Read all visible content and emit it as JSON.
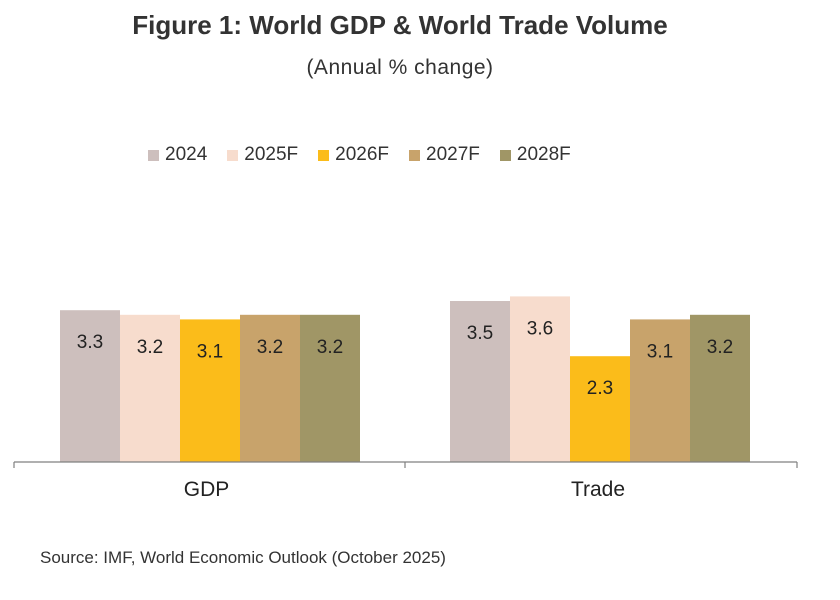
{
  "title": "Figure 1:  World GDP & World Trade Volume",
  "subtitle": "(Annual % change)",
  "source": "Source: IMF, World Economic Outlook (October 2025)",
  "colors": {
    "2024": "#cdbfbd",
    "2025F": "#f7dccd",
    "2026F": "#fbbc1a",
    "2027F": "#c8a36b",
    "2028F": "#a09666",
    "axis": "#808080",
    "label": "#222222"
  },
  "chart_data": {
    "type": "bar",
    "title": "Figure 1:  World GDP & World Trade Volume",
    "subtitle": "(Annual % change)",
    "categories": [
      "GDP",
      "Trade"
    ],
    "series": [
      {
        "name": "2024",
        "values": [
          3.3,
          3.5
        ]
      },
      {
        "name": "2025F",
        "values": [
          3.2,
          3.6
        ]
      },
      {
        "name": "2026F",
        "values": [
          3.1,
          2.3
        ]
      },
      {
        "name": "2027F",
        "values": [
          3.2,
          3.1
        ]
      },
      {
        "name": "2028F",
        "values": [
          3.2,
          3.2
        ]
      }
    ],
    "xlabel": "",
    "ylabel": "",
    "ylim": [
      0,
      7.5
    ],
    "grid": false,
    "legend": "top",
    "data_labels": true
  }
}
